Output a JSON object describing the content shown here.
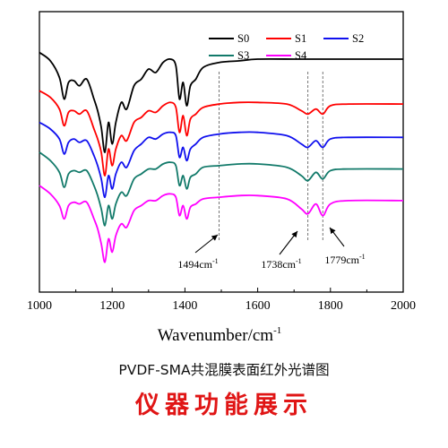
{
  "chart_data": {
    "type": "line",
    "xlabel": "Wavenumber/cm",
    "xlabel_sup": "-1",
    "xlim": [
      1000,
      2000
    ],
    "xticks": [
      "1000",
      "1200",
      "1400",
      "1600",
      "1800",
      "2000"
    ],
    "y_ticks_shown": false,
    "grid": false,
    "legend_position": "top-right",
    "series": [
      {
        "name": "S0",
        "color": "#000000",
        "values": [
          [
            1000,
            0.9
          ],
          [
            1030,
            0.85
          ],
          [
            1055,
            0.75
          ],
          [
            1068,
            0.62
          ],
          [
            1080,
            0.72
          ],
          [
            1095,
            0.73
          ],
          [
            1110,
            0.7
          ],
          [
            1130,
            0.74
          ],
          [
            1150,
            0.62
          ],
          [
            1160,
            0.55
          ],
          [
            1170,
            0.45
          ],
          [
            1180,
            0.3
          ],
          [
            1190,
            0.48
          ],
          [
            1200,
            0.35
          ],
          [
            1210,
            0.48
          ],
          [
            1225,
            0.6
          ],
          [
            1240,
            0.56
          ],
          [
            1260,
            0.7
          ],
          [
            1280,
            0.74
          ],
          [
            1300,
            0.8
          ],
          [
            1320,
            0.78
          ],
          [
            1340,
            0.84
          ],
          [
            1360,
            0.86
          ],
          [
            1375,
            0.82
          ],
          [
            1385,
            0.62
          ],
          [
            1395,
            0.72
          ],
          [
            1405,
            0.58
          ],
          [
            1415,
            0.7
          ],
          [
            1430,
            0.74
          ],
          [
            1450,
            0.81
          ],
          [
            1494,
            0.84
          ],
          [
            1550,
            0.85
          ],
          [
            1600,
            0.86
          ],
          [
            1700,
            0.86
          ],
          [
            1738,
            0.86
          ],
          [
            1779,
            0.86
          ],
          [
            1850,
            0.86
          ],
          [
            2000,
            0.86
          ]
        ]
      },
      {
        "name": "S1",
        "color": "#ff0000",
        "values": [
          [
            1000,
            0.67
          ],
          [
            1030,
            0.63
          ],
          [
            1055,
            0.56
          ],
          [
            1068,
            0.46
          ],
          [
            1080,
            0.54
          ],
          [
            1095,
            0.55
          ],
          [
            1110,
            0.53
          ],
          [
            1130,
            0.55
          ],
          [
            1150,
            0.44
          ],
          [
            1160,
            0.38
          ],
          [
            1170,
            0.3
          ],
          [
            1180,
            0.16
          ],
          [
            1190,
            0.32
          ],
          [
            1200,
            0.22
          ],
          [
            1210,
            0.32
          ],
          [
            1225,
            0.4
          ],
          [
            1240,
            0.37
          ],
          [
            1260,
            0.48
          ],
          [
            1280,
            0.51
          ],
          [
            1300,
            0.55
          ],
          [
            1320,
            0.54
          ],
          [
            1340,
            0.58
          ],
          [
            1360,
            0.6
          ],
          [
            1375,
            0.57
          ],
          [
            1385,
            0.42
          ],
          [
            1395,
            0.52
          ],
          [
            1405,
            0.4
          ],
          [
            1415,
            0.5
          ],
          [
            1430,
            0.53
          ],
          [
            1450,
            0.57
          ],
          [
            1494,
            0.59
          ],
          [
            1550,
            0.6
          ],
          [
            1600,
            0.6
          ],
          [
            1680,
            0.59
          ],
          [
            1720,
            0.55
          ],
          [
            1738,
            0.53
          ],
          [
            1760,
            0.56
          ],
          [
            1779,
            0.53
          ],
          [
            1800,
            0.58
          ],
          [
            1850,
            0.59
          ],
          [
            2000,
            0.59
          ]
        ]
      },
      {
        "name": "S2",
        "color": "#1010ee",
        "values": [
          [
            1000,
            0.48
          ],
          [
            1030,
            0.44
          ],
          [
            1055,
            0.38
          ],
          [
            1068,
            0.29
          ],
          [
            1080,
            0.36
          ],
          [
            1095,
            0.38
          ],
          [
            1110,
            0.36
          ],
          [
            1130,
            0.37
          ],
          [
            1150,
            0.28
          ],
          [
            1160,
            0.22
          ],
          [
            1170,
            0.14
          ],
          [
            1180,
            0.03
          ],
          [
            1190,
            0.16
          ],
          [
            1200,
            0.08
          ],
          [
            1210,
            0.17
          ],
          [
            1225,
            0.24
          ],
          [
            1240,
            0.21
          ],
          [
            1260,
            0.31
          ],
          [
            1280,
            0.35
          ],
          [
            1300,
            0.39
          ],
          [
            1320,
            0.38
          ],
          [
            1340,
            0.41
          ],
          [
            1360,
            0.42
          ],
          [
            1375,
            0.4
          ],
          [
            1385,
            0.27
          ],
          [
            1395,
            0.33
          ],
          [
            1405,
            0.25
          ],
          [
            1415,
            0.32
          ],
          [
            1430,
            0.35
          ],
          [
            1450,
            0.39
          ],
          [
            1494,
            0.41
          ],
          [
            1550,
            0.42
          ],
          [
            1600,
            0.42
          ],
          [
            1680,
            0.4
          ],
          [
            1720,
            0.35
          ],
          [
            1738,
            0.33
          ],
          [
            1760,
            0.37
          ],
          [
            1779,
            0.33
          ],
          [
            1800,
            0.38
          ],
          [
            1850,
            0.39
          ],
          [
            2000,
            0.39
          ]
        ]
      },
      {
        "name": "S3",
        "color": "#127a6a",
        "values": [
          [
            1000,
            0.3
          ],
          [
            1030,
            0.25
          ],
          [
            1055,
            0.18
          ],
          [
            1068,
            0.09
          ],
          [
            1080,
            0.17
          ],
          [
            1095,
            0.19
          ],
          [
            1110,
            0.18
          ],
          [
            1130,
            0.19
          ],
          [
            1150,
            0.1
          ],
          [
            1160,
            0.04
          ],
          [
            1170,
            -0.04
          ],
          [
            1180,
            -0.14
          ],
          [
            1190,
            -0.02
          ],
          [
            1200,
            -0.1
          ],
          [
            1210,
            -0.01
          ],
          [
            1225,
            0.06
          ],
          [
            1240,
            0.04
          ],
          [
            1260,
            0.14
          ],
          [
            1280,
            0.17
          ],
          [
            1300,
            0.2
          ],
          [
            1320,
            0.2
          ],
          [
            1340,
            0.23
          ],
          [
            1360,
            0.24
          ],
          [
            1375,
            0.22
          ],
          [
            1385,
            0.1
          ],
          [
            1395,
            0.16
          ],
          [
            1405,
            0.08
          ],
          [
            1415,
            0.15
          ],
          [
            1430,
            0.17
          ],
          [
            1450,
            0.21
          ],
          [
            1494,
            0.22
          ],
          [
            1550,
            0.23
          ],
          [
            1600,
            0.23
          ],
          [
            1680,
            0.21
          ],
          [
            1720,
            0.16
          ],
          [
            1738,
            0.13
          ],
          [
            1760,
            0.18
          ],
          [
            1779,
            0.14
          ],
          [
            1800,
            0.19
          ],
          [
            1850,
            0.2
          ],
          [
            2000,
            0.2
          ]
        ]
      },
      {
        "name": "S4",
        "color": "#ff00ff",
        "values": [
          [
            1000,
            0.1
          ],
          [
            1030,
            0.05
          ],
          [
            1055,
            -0.02
          ],
          [
            1068,
            -0.1
          ],
          [
            1080,
            -0.02
          ],
          [
            1095,
            0.0
          ],
          [
            1110,
            -0.01
          ],
          [
            1130,
            0.0
          ],
          [
            1150,
            -0.1
          ],
          [
            1160,
            -0.16
          ],
          [
            1170,
            -0.25
          ],
          [
            1180,
            -0.36
          ],
          [
            1190,
            -0.22
          ],
          [
            1200,
            -0.3
          ],
          [
            1210,
            -0.2
          ],
          [
            1225,
            -0.13
          ],
          [
            1240,
            -0.15
          ],
          [
            1260,
            -0.05
          ],
          [
            1280,
            -0.02
          ],
          [
            1300,
            0.01
          ],
          [
            1320,
            0.01
          ],
          [
            1340,
            0.04
          ],
          [
            1360,
            0.05
          ],
          [
            1375,
            0.03
          ],
          [
            1385,
            -0.08
          ],
          [
            1395,
            -0.02
          ],
          [
            1405,
            -0.1
          ],
          [
            1415,
            -0.03
          ],
          [
            1430,
            -0.01
          ],
          [
            1450,
            0.02
          ],
          [
            1494,
            0.03
          ],
          [
            1550,
            0.04
          ],
          [
            1600,
            0.04
          ],
          [
            1680,
            0.02
          ],
          [
            1720,
            -0.04
          ],
          [
            1738,
            -0.07
          ],
          [
            1760,
            -0.01
          ],
          [
            1779,
            -0.08
          ],
          [
            1800,
            -0.01
          ],
          [
            1850,
            0.01
          ],
          [
            2000,
            0.01
          ]
        ]
      }
    ],
    "reference_lines_x": [
      1494,
      1738,
      1779
    ],
    "annotations": [
      {
        "x": 1494,
        "label": "1494cm",
        "sup": "-1"
      },
      {
        "x": 1738,
        "label": "1738cm",
        "sup": "-1"
      },
      {
        "x": 1779,
        "label": "1779cm",
        "sup": "-1"
      }
    ]
  },
  "caption": {
    "subtitle": "PVDF-SMA共混膜表面红外光谱图",
    "title": "仪器功能展示"
  }
}
